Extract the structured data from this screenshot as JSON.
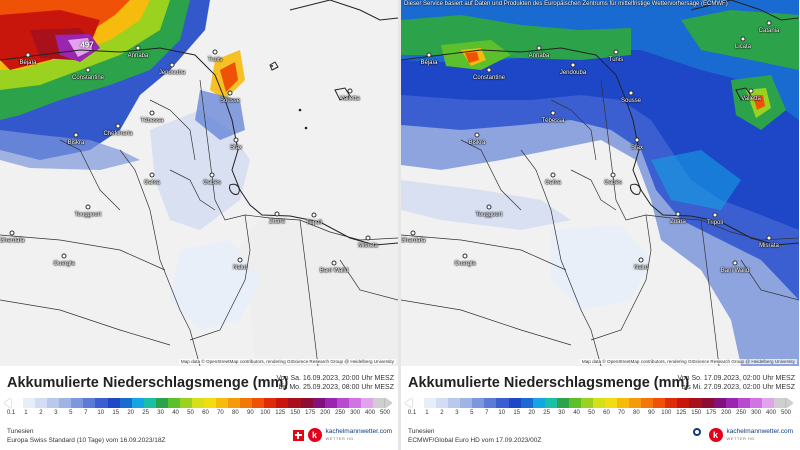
{
  "legend_colors": [
    "#ffffff",
    "#e8eef9",
    "#d2dcf2",
    "#b9c8ec",
    "#9fb4e5",
    "#7c97dc",
    "#5a7bd6",
    "#3b5fd0",
    "#1e47c8",
    "#1a6bd1",
    "#12a6e3",
    "#19c0a6",
    "#2ca34a",
    "#5cbf2c",
    "#9ad21f",
    "#d6e019",
    "#f2dc12",
    "#f6bb0d",
    "#f59a0b",
    "#f27707",
    "#ef5107",
    "#e02b08",
    "#c9160c",
    "#a8101c",
    "#8c0c34",
    "#84117b",
    "#9a25b0",
    "#b74ad0",
    "#cf74e0",
    "#e1a2ee",
    "#cfcfcf"
  ],
  "legend_ticks": [
    "0.1",
    "1",
    "2",
    "3",
    "5",
    "7",
    "10",
    "15",
    "20",
    "25",
    "30",
    "40",
    "50",
    "60",
    "70",
    "80",
    "90",
    "100",
    "125",
    "150",
    "175",
    "200",
    "250",
    "300",
    "400",
    "500"
  ],
  "panels": [
    {
      "header_note": "",
      "max_label": "497",
      "attribution": "Map data © OpenStreetMap contributors, rendering GIScience Research Group @ Heidelberg University",
      "cities": [
        "Annaba",
        "Béjaïa",
        "Constantine",
        "Jendouba",
        "Tunis",
        "Sousse",
        "Valletta",
        "Chefcharia",
        "Tébessa",
        "Biskra",
        "Sfax",
        "Gafsa",
        "Gabès",
        "Zuara",
        "Tripoli",
        "Misrata",
        "Touggourt",
        "Ghardaïa",
        "Ouargla",
        "Nalut",
        "Bani Walid"
      ],
      "legend": {
        "title": "Akkumulierte Niederschlagsmenge (mm)",
        "period_line1": "Von Sa. 16.09.2023, 20:00 Uhr MESZ",
        "period_line2": "bis Mo. 25.09.2023, 08:00 Uhr MESZ",
        "region": "Tunesien",
        "model": "Europa Swiss Standard (10 Tage) vom 16.09.2023/18Z",
        "brand_name": "kachelmannwetter.com",
        "brand_sub": "WETTER HD"
      }
    },
    {
      "header_note": "Dieser Service basiert auf Daten und Produkten des Europäischen Zentrums für mittelfristige Wettervorhersage (ECMWF)",
      "attribution": "Map data © OpenStreetMap contributors, rendering GIScience Research Group @ Heidelberg University",
      "cities": [
        "Annaba",
        "Béjaïa",
        "Constantine",
        "Jendouba",
        "Tunis",
        "Sousse",
        "Valletta",
        "Licata",
        "Catania",
        "Tébessa",
        "Biskra",
        "Sfax",
        "Gafsa",
        "Gabès",
        "Zuara",
        "Tripoli",
        "Misrata",
        "Touggourt",
        "Ghardaïa",
        "Ouargla",
        "Nalut",
        "Bani Walid"
      ],
      "legend": {
        "title": "Akkumulierte Niederschlagsmenge (mm)",
        "period_line1": "Von So. 17.09.2023, 02:00 Uhr MESZ",
        "period_line2": "bis Mi. 27.09.2023, 02:00 Uhr MESZ",
        "region": "Tunesien",
        "model": "ECMWF/Global Euro HD vom 17.09.2023/00Z",
        "brand_name": "kachelmannwetter.com",
        "brand_sub": "WETTER HD"
      }
    }
  ]
}
